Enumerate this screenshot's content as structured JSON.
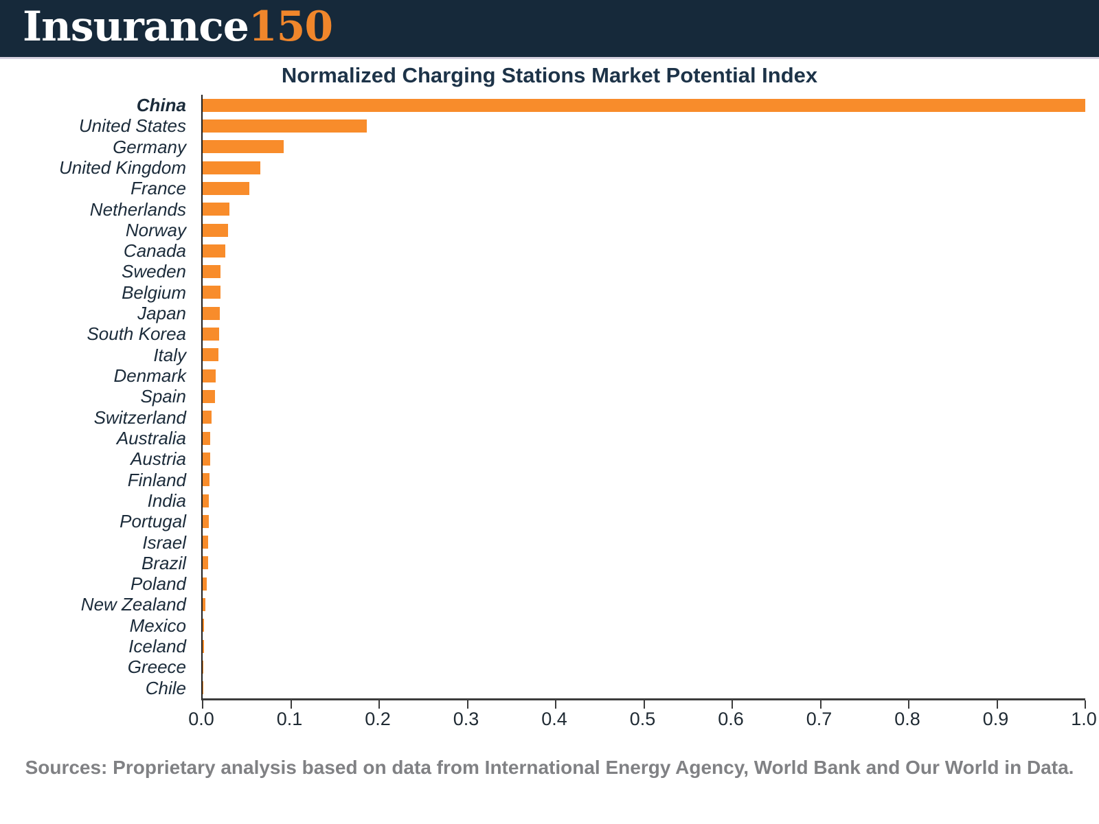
{
  "header": {
    "logo_part1": "Insurance",
    "logo_part2": "150"
  },
  "title": "Normalized Charging Stations Market Potential Index",
  "chart_data": {
    "type": "bar",
    "orientation": "horizontal",
    "title": "Normalized Charging Stations Market Potential Index",
    "categories": [
      "China",
      "United States",
      "Germany",
      "United Kingdom",
      "France",
      "Netherlands",
      "Norway",
      "Canada",
      "Sweden",
      "Belgium",
      "Japan",
      "South Korea",
      "Italy",
      "Denmark",
      "Spain",
      "Switzerland",
      "Australia",
      "Austria",
      "Finland",
      "India",
      "Portugal",
      "Israel",
      "Brazil",
      "Poland",
      "New Zealand",
      "Mexico",
      "Iceland",
      "Greece",
      "Chile"
    ],
    "values": [
      1.0,
      0.186,
      0.092,
      0.065,
      0.053,
      0.03,
      0.029,
      0.026,
      0.0205,
      0.02,
      0.0195,
      0.019,
      0.018,
      0.0145,
      0.014,
      0.01,
      0.0088,
      0.0082,
      0.0076,
      0.0072,
      0.0068,
      0.0066,
      0.0064,
      0.005,
      0.003,
      0.0018,
      0.0015,
      0.0004,
      0.0002
    ],
    "xlabel": "",
    "ylabel": "",
    "xlim": [
      0,
      1
    ],
    "xtick_labels": [
      "0.0",
      "0.1",
      "0.2",
      "0.3",
      "0.4",
      "0.5",
      "0.6",
      "0.7",
      "0.8",
      "0.9",
      "1.0"
    ],
    "bar_color": "#f88c2b",
    "highlight_category": "China",
    "grid": false,
    "legend": null
  },
  "footer": {
    "sources": "Sources: Proprietary analysis based on data from International Energy Agency, World Bank and Our World in Data."
  },
  "colors": {
    "header_bg": "#16293a",
    "accent_orange": "#f88c2b",
    "title_navy": "#1d3348",
    "label_navy": "#1b2b3a",
    "sources_gray": "#808184"
  }
}
